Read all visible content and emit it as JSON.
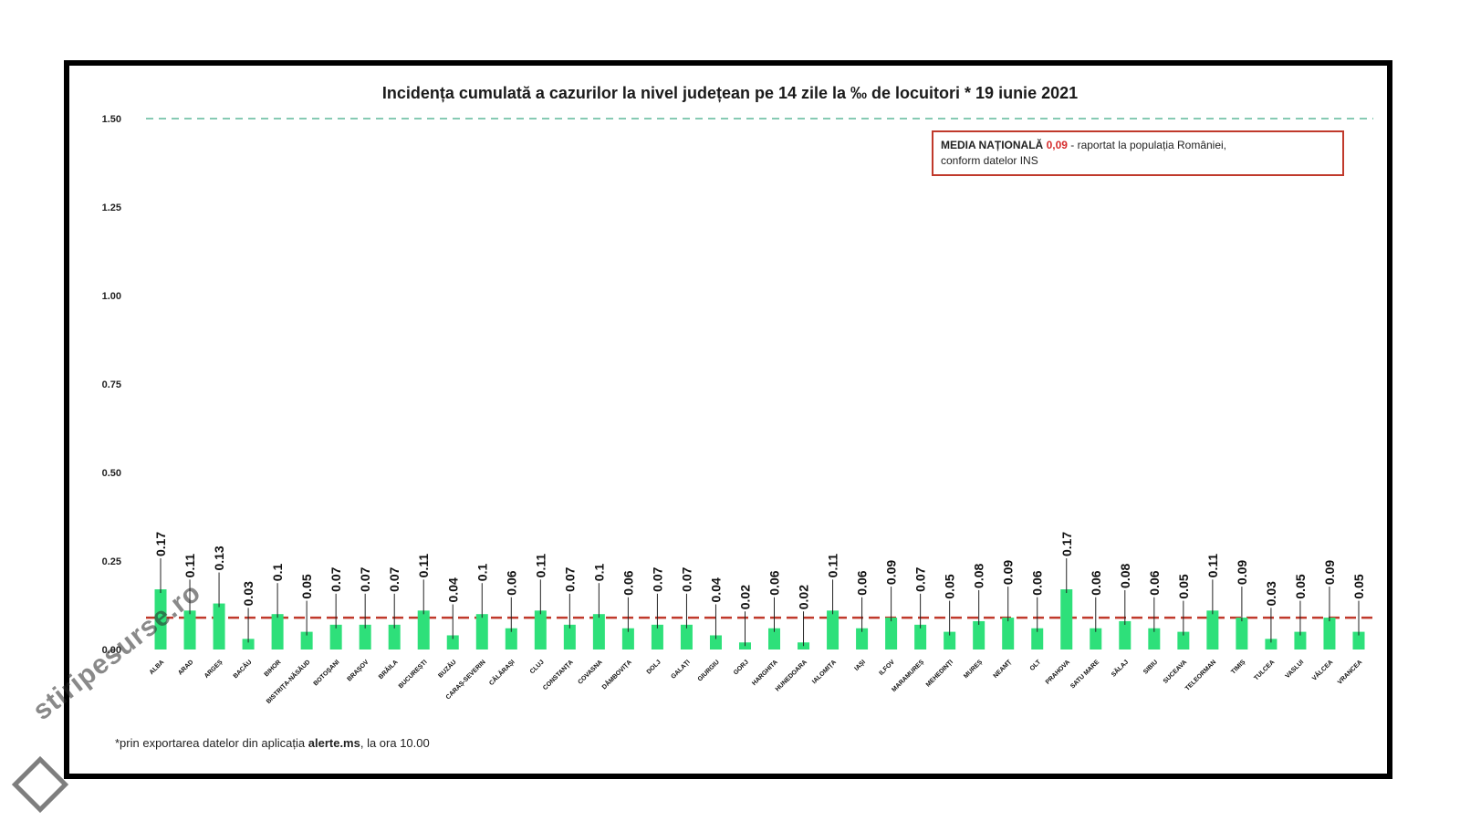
{
  "chart_data": {
    "type": "bar",
    "title": "Incidența cumulată a cazurilor la nivel județean pe 14 zile la ‰ de locuitori *  19 iunie 2021",
    "xlabel": "",
    "ylabel": "",
    "ylim": [
      0,
      1.5
    ],
    "yticks": [
      "0.00",
      "0.25",
      "0.50",
      "0.75",
      "1.00",
      "1.25",
      "1.50"
    ],
    "reference_lines": [
      {
        "value": 1.5,
        "style": "dashed",
        "color": "#5fb89a"
      },
      {
        "value": 0.09,
        "style": "dashed",
        "color": "#c0392b"
      }
    ],
    "categories": [
      "ALBA",
      "ARAD",
      "ARGEȘ",
      "BACĂU",
      "BIHOR",
      "BISTRIȚA-NĂSĂUD",
      "BOTOȘANI",
      "BRAȘOV",
      "BRĂILA",
      "BUCUREȘTI",
      "BUZĂU",
      "CARAȘ-SEVERIN",
      "CĂLĂRAȘI",
      "CLUJ",
      "CONSTANȚA",
      "COVASNA",
      "DÂMBOVIȚA",
      "DOLJ",
      "GALAȚI",
      "GIURGIU",
      "GORJ",
      "HARGHITA",
      "HUNEDOARA",
      "IALOMIȚA",
      "IAȘI",
      "ILFOV",
      "MARAMUREȘ",
      "MEHEDINȚI",
      "MUREȘ",
      "NEAMȚ",
      "OLT",
      "PRAHOVA",
      "SATU MARE",
      "SĂLAJ",
      "SIBIU",
      "SUCEAVA",
      "TELEORMAN",
      "TIMIȘ",
      "TULCEA",
      "VASLUI",
      "VÂLCEA",
      "VRANCEA"
    ],
    "values": [
      0.17,
      0.11,
      0.13,
      0.03,
      0.1,
      0.05,
      0.07,
      0.07,
      0.07,
      0.11,
      0.04,
      0.1,
      0.06,
      0.11,
      0.07,
      0.1,
      0.06,
      0.07,
      0.07,
      0.04,
      0.02,
      0.06,
      0.02,
      0.11,
      0.06,
      0.09,
      0.07,
      0.05,
      0.08,
      0.09,
      0.06,
      0.17,
      0.06,
      0.08,
      0.06,
      0.05,
      0.11,
      0.09,
      0.03,
      0.05,
      0.09,
      0.05
    ],
    "data_labels": [
      "0.17",
      "0.11",
      "0.13",
      "0.03",
      "0.1",
      "0.05",
      "0.07",
      "0.07",
      "0.07",
      "0.11",
      "0.04",
      "0.1",
      "0.06",
      "0.11",
      "0.07",
      "0.1",
      "0.06",
      "0.07",
      "0.07",
      "0.04",
      "0.02",
      "0.06",
      "0.02",
      "0.11",
      "0.06",
      "0.09",
      "0.07",
      "0.05",
      "0.08",
      "0.09",
      "0.06",
      "0.17",
      "0.06",
      "0.08",
      "0.06",
      "0.05",
      "0.11",
      "0.09",
      "0.03",
      "0.05",
      "0.09",
      "0.05"
    ],
    "bar_color": "#2ee07a",
    "grid": false
  },
  "legend_box": {
    "bold_text": "MEDIA NAȚIONALĂ",
    "value": "0,09",
    "rest": " - raportat la populația României,",
    "line2": "conform datelor INS"
  },
  "footnote": {
    "prefix": "*prin exportarea datelor din aplicația ",
    "bold": "alerte.ms",
    "suffix": ", la ora 10.00"
  },
  "watermark": {
    "text": "stiripesurse.ro"
  }
}
